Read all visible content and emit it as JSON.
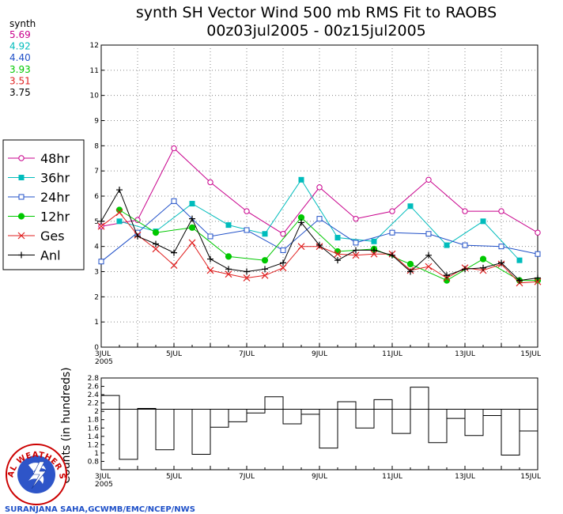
{
  "chart_data": [
    {
      "type": "line",
      "title": "synth SH Vector Wind 500 mb RMS Fit to RAOBS",
      "subtitle": "00z03jul2005 - 00z15jul2005",
      "ylim": [
        0,
        12
      ],
      "yticks": [
        0,
        1,
        2,
        3,
        4,
        5,
        6,
        7,
        8,
        9,
        10,
        11,
        12
      ],
      "xlim": [
        0,
        24
      ],
      "xticks": [
        {
          "x": 0,
          "label": "3JUL",
          "sub": "2005"
        },
        {
          "x": 4,
          "label": "5JUL",
          "sub": ""
        },
        {
          "x": 8,
          "label": "7JUL",
          "sub": ""
        },
        {
          "x": 12,
          "label": "9JUL",
          "sub": ""
        },
        {
          "x": 16,
          "label": "11JUL",
          "sub": ""
        },
        {
          "x": 20,
          "label": "13JUL",
          "sub": ""
        },
        {
          "x": 24,
          "label": "15JUL",
          "sub": ""
        }
      ],
      "grid": true,
      "legend_position": "left",
      "series": [
        {
          "name": "48hr",
          "color": "#c8008c",
          "marker": "open-circle",
          "x": [
            0,
            2,
            4,
            6,
            8,
            10,
            12,
            14,
            16,
            18,
            20,
            22,
            24
          ],
          "y": [
            4.8,
            5.05,
            7.9,
            6.55,
            5.4,
            4.5,
            6.35,
            5.1,
            5.4,
            6.65,
            5.4,
            5.4,
            4.55
          ]
        },
        {
          "name": "36hr",
          "color": "#00bcbc",
          "marker": "filled-square",
          "x": [
            1,
            3,
            5,
            7,
            9,
            11,
            13,
            15,
            17,
            19,
            21,
            23
          ],
          "y": [
            5.0,
            4.6,
            5.7,
            4.85,
            4.5,
            6.65,
            4.35,
            4.2,
            5.6,
            4.05,
            5.0,
            3.45
          ]
        },
        {
          "name": "24hr",
          "color": "#2050c8",
          "marker": "open-square",
          "x": [
            0,
            2,
            4,
            6,
            8,
            10,
            12,
            14,
            16,
            18,
            20,
            22,
            24
          ],
          "y": [
            3.4,
            4.55,
            5.8,
            4.4,
            4.65,
            3.85,
            5.1,
            4.15,
            4.55,
            4.5,
            4.05,
            4.0,
            3.7
          ]
        },
        {
          "name": "12hr",
          "color": "#00c800",
          "marker": "filled-circle",
          "x": [
            1,
            3,
            5,
            7,
            9,
            11,
            13,
            15,
            17,
            19,
            21,
            23,
            24
          ],
          "y": [
            5.45,
            4.55,
            4.75,
            3.6,
            3.45,
            5.15,
            3.8,
            3.9,
            3.3,
            2.65,
            3.5,
            2.65,
            2.65
          ]
        },
        {
          "name": "Ges",
          "color": "#e02020",
          "marker": "x",
          "x": [
            0,
            1,
            2,
            3,
            4,
            5,
            6,
            7,
            8,
            9,
            10,
            11,
            12,
            13,
            14,
            15,
            16,
            17,
            18,
            19,
            20,
            21,
            22,
            23,
            24
          ],
          "y": [
            4.8,
            5.35,
            4.45,
            3.9,
            3.25,
            4.15,
            3.05,
            2.9,
            2.75,
            2.85,
            3.15,
            4.0,
            4.0,
            3.7,
            3.65,
            3.7,
            3.7,
            3.05,
            3.2,
            2.75,
            3.15,
            3.05,
            3.3,
            2.55,
            2.6
          ]
        },
        {
          "name": "Anl",
          "color": "#000000",
          "marker": "plus",
          "x": [
            0,
            1,
            2,
            3,
            4,
            5,
            6,
            7,
            8,
            9,
            10,
            11,
            12,
            13,
            14,
            15,
            16,
            17,
            18,
            19,
            20,
            21,
            22,
            23,
            24
          ],
          "y": [
            5.0,
            6.25,
            4.4,
            4.1,
            3.75,
            5.1,
            3.5,
            3.1,
            3.0,
            3.1,
            3.35,
            4.95,
            4.05,
            3.45,
            3.85,
            3.85,
            3.65,
            3.0,
            3.65,
            2.85,
            3.1,
            3.15,
            3.35,
            2.65,
            2.75
          ]
        }
      ]
    },
    {
      "type": "bar",
      "ylabel": "Counts (in hundreds)",
      "ylim": [
        0.6,
        2.8
      ],
      "yticks": [
        "0.8",
        "1",
        "1.2",
        "1.4",
        "1.6",
        "1.8",
        "2",
        "2.2",
        "2.4",
        "2.6",
        "2.8"
      ],
      "reference_line": 2.05,
      "x_start": 0,
      "bar_width": 1,
      "values": [
        2.38,
        0.85,
        2.07,
        1.08,
        2.05,
        0.97,
        1.62,
        1.75,
        1.96,
        2.35,
        1.7,
        1.93,
        1.12,
        2.23,
        1.6,
        2.28,
        1.47,
        2.58,
        1.25,
        1.83,
        1.42,
        1.9,
        0.95,
        1.53
      ],
      "xticks": [
        {
          "x": 0,
          "label": "3JUL",
          "sub": "2005"
        },
        {
          "x": 4,
          "label": "5JUL",
          "sub": ""
        },
        {
          "x": 8,
          "label": "7JUL",
          "sub": ""
        },
        {
          "x": 12,
          "label": "9JUL",
          "sub": ""
        },
        {
          "x": 16,
          "label": "11JUL",
          "sub": ""
        },
        {
          "x": 20,
          "label": "13JUL",
          "sub": ""
        },
        {
          "x": 24,
          "label": "15JUL",
          "sub": ""
        }
      ]
    }
  ],
  "stats": {
    "label": "synth",
    "values": [
      {
        "value": "5.69",
        "color": "#c8008c"
      },
      {
        "value": "4.92",
        "color": "#00bcbc"
      },
      {
        "value": "4.40",
        "color": "#2050c8"
      },
      {
        "value": "3.93",
        "color": "#00c800"
      },
      {
        "value": "3.51",
        "color": "#e02020"
      },
      {
        "value": "3.75",
        "color": "#000000"
      }
    ]
  },
  "logo": {
    "text": "NATIONAL WEATHER SERVICE",
    "icon": "nws-logo-icon"
  },
  "credit": "SURANJANA SAHA,GCWMB/EMC/NCEP/NWS"
}
